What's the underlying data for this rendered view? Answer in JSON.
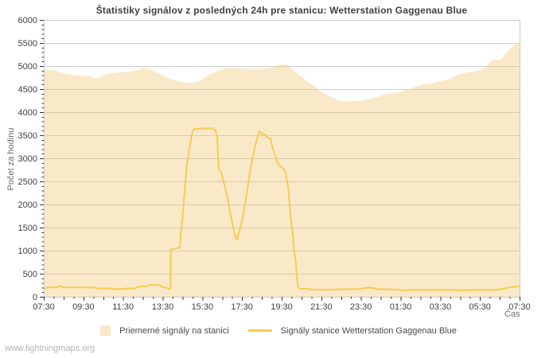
{
  "watermark": "www.lightningmaps.org",
  "chart": {
    "title": "Štatistiky signálov z posledných 24h pre stanicu: Wetterstation Gaggenau Blue",
    "ylabel": "Počet za hodinu",
    "xlabel": "Čas"
  },
  "legend": {
    "items": [
      {
        "label": "Priemerné signály na stanici",
        "type": "area",
        "swatch_color": "#fae7c4"
      },
      {
        "label": "Signály stanice Wetterstation Gaggenau Blue",
        "type": "line",
        "swatch_color": "#f7cc4f"
      }
    ]
  },
  "colors": {
    "area_fill": "rgba(243,197,114,0.38)",
    "line": "#f7cc4f",
    "gridline": "#cfcfcf",
    "frame": "#c9c9c9",
    "tick": "#333333",
    "tick_label": "#404040"
  },
  "chart_data": {
    "type": "area",
    "title": "Štatistiky signálov z posledných 24h pre stanicu: Wetterstation Gaggenau Blue",
    "xlabel": "Čas",
    "ylabel": "Počet za hodinu",
    "x_unit": "hours since 07:30",
    "xlim": [
      0,
      24
    ],
    "ylim": [
      0,
      6000
    ],
    "grid": true,
    "legend_position": "bottom-center",
    "x_tick_hours": [
      0,
      2,
      4,
      6,
      8,
      10,
      12,
      14,
      16,
      18,
      20,
      22,
      24
    ],
    "x_tick_labels": [
      "07:30",
      "09:30",
      "11:30",
      "13:30",
      "15:30",
      "17:30",
      "19:30",
      "21:30",
      "23:30",
      "01:30",
      "03:30",
      "05:30",
      "07:30"
    ],
    "x_minor_step_hours": 0.5,
    "y_tick_values": [
      0,
      500,
      1000,
      1500,
      2000,
      2500,
      3000,
      3500,
      4000,
      4500,
      5000,
      5500,
      6000
    ],
    "y_tick_labels": [
      "0",
      "500",
      "1000",
      "1500",
      "2000",
      "2500",
      "3000",
      "3500",
      "4000",
      "4500",
      "5000",
      "5500",
      "6000"
    ],
    "y_minor_step": 100,
    "series": [
      {
        "name": "Priemerné signály na stanici",
        "type": "area",
        "points": [
          [
            0,
            4930
          ],
          [
            0.6,
            4900
          ],
          [
            1.1,
            4830
          ],
          [
            1.6,
            4800
          ],
          [
            2.1,
            4790
          ],
          [
            2.4,
            4770
          ],
          [
            2.62,
            4720
          ],
          [
            2.82,
            4770
          ],
          [
            3.1,
            4820
          ],
          [
            3.5,
            4850
          ],
          [
            4.0,
            4870
          ],
          [
            4.5,
            4890
          ],
          [
            4.8,
            4925
          ],
          [
            5.1,
            4955
          ],
          [
            5.4,
            4930
          ],
          [
            5.65,
            4880
          ],
          [
            5.9,
            4820
          ],
          [
            6.2,
            4760
          ],
          [
            6.5,
            4700
          ],
          [
            6.9,
            4655
          ],
          [
            7.4,
            4635
          ],
          [
            7.9,
            4680
          ],
          [
            8.15,
            4770
          ],
          [
            8.67,
            4870
          ],
          [
            9.0,
            4930
          ],
          [
            9.5,
            4960
          ],
          [
            10.0,
            4945
          ],
          [
            10.9,
            4940
          ],
          [
            11.3,
            4950
          ],
          [
            11.6,
            4975
          ],
          [
            12.0,
            5040
          ],
          [
            12.3,
            5020
          ],
          [
            12.45,
            4960
          ],
          [
            12.6,
            4900
          ],
          [
            12.7,
            4860
          ],
          [
            12.85,
            4820
          ],
          [
            13.1,
            4740
          ],
          [
            13.25,
            4680
          ],
          [
            13.5,
            4610
          ],
          [
            13.8,
            4520
          ],
          [
            14.0,
            4440
          ],
          [
            14.3,
            4370
          ],
          [
            14.6,
            4310
          ],
          [
            14.85,
            4260
          ],
          [
            15.3,
            4230
          ],
          [
            16.0,
            4250
          ],
          [
            16.45,
            4280
          ],
          [
            16.75,
            4320
          ],
          [
            17.25,
            4390
          ],
          [
            17.8,
            4420
          ],
          [
            18.35,
            4490
          ],
          [
            18.9,
            4570
          ],
          [
            19.15,
            4610
          ],
          [
            19.55,
            4620
          ],
          [
            19.95,
            4670
          ],
          [
            20.3,
            4700
          ],
          [
            20.65,
            4750
          ],
          [
            20.85,
            4810
          ],
          [
            21.2,
            4845
          ],
          [
            21.5,
            4870
          ],
          [
            21.85,
            4890
          ],
          [
            22.1,
            4940
          ],
          [
            22.25,
            4970
          ],
          [
            22.4,
            5030
          ],
          [
            22.55,
            5090
          ],
          [
            22.65,
            5145
          ],
          [
            23.05,
            5130
          ],
          [
            23.2,
            5200
          ],
          [
            23.3,
            5260
          ],
          [
            23.45,
            5345
          ],
          [
            23.6,
            5400
          ],
          [
            23.7,
            5460
          ],
          [
            24,
            5500
          ]
        ]
      },
      {
        "name": "Signály stanice Wetterstation Gaggenau Blue",
        "type": "line",
        "points": [
          [
            0,
            175
          ],
          [
            0.2,
            205
          ],
          [
            0.7,
            205
          ],
          [
            0.8,
            235
          ],
          [
            0.95,
            205
          ],
          [
            2.55,
            200
          ],
          [
            2.7,
            180
          ],
          [
            3.35,
            180
          ],
          [
            3.45,
            165
          ],
          [
            3.95,
            165
          ],
          [
            4.1,
            180
          ],
          [
            4.6,
            180
          ],
          [
            4.75,
            220
          ],
          [
            5.2,
            225
          ],
          [
            5.35,
            255
          ],
          [
            5.8,
            255
          ],
          [
            5.95,
            215
          ],
          [
            6.2,
            195
          ],
          [
            6.3,
            175
          ],
          [
            6.38,
            175
          ],
          [
            6.41,
            1030
          ],
          [
            6.85,
            1060
          ],
          [
            7.05,
            2000
          ],
          [
            7.2,
            2800
          ],
          [
            7.38,
            3300
          ],
          [
            7.5,
            3580
          ],
          [
            7.6,
            3640
          ],
          [
            8.55,
            3650
          ],
          [
            8.67,
            3600
          ],
          [
            8.75,
            3440
          ],
          [
            8.82,
            2760
          ],
          [
            8.95,
            2700
          ],
          [
            9.07,
            2490
          ],
          [
            9.27,
            2160
          ],
          [
            9.4,
            1820
          ],
          [
            9.55,
            1500
          ],
          [
            9.65,
            1310
          ],
          [
            9.75,
            1230
          ],
          [
            9.88,
            1450
          ],
          [
            10.0,
            1650
          ],
          [
            10.15,
            2000
          ],
          [
            10.28,
            2350
          ],
          [
            10.4,
            2700
          ],
          [
            10.55,
            3050
          ],
          [
            10.68,
            3300
          ],
          [
            10.8,
            3500
          ],
          [
            10.89,
            3590
          ],
          [
            11.0,
            3520
          ],
          [
            11.17,
            3520
          ],
          [
            11.3,
            3440
          ],
          [
            11.45,
            3430
          ],
          [
            11.5,
            3300
          ],
          [
            11.62,
            3130
          ],
          [
            11.75,
            2950
          ],
          [
            11.9,
            2840
          ],
          [
            12.05,
            2790
          ],
          [
            12.17,
            2730
          ],
          [
            12.3,
            2450
          ],
          [
            12.37,
            2160
          ],
          [
            12.43,
            1820
          ],
          [
            12.5,
            1540
          ],
          [
            12.57,
            1310
          ],
          [
            12.63,
            970
          ],
          [
            12.7,
            800
          ],
          [
            12.75,
            515
          ],
          [
            12.79,
            320
          ],
          [
            12.84,
            200
          ],
          [
            12.95,
            175
          ],
          [
            13.3,
            170
          ],
          [
            13.6,
            155
          ],
          [
            14.2,
            150
          ],
          [
            14.9,
            160
          ],
          [
            15.8,
            165
          ],
          [
            16.35,
            195
          ],
          [
            16.6,
            195
          ],
          [
            16.8,
            165
          ],
          [
            17.5,
            160
          ],
          [
            18.2,
            140
          ],
          [
            18.8,
            150
          ],
          [
            19.6,
            145
          ],
          [
            20.4,
            150
          ],
          [
            21.1,
            140
          ],
          [
            21.9,
            150
          ],
          [
            22.6,
            145
          ],
          [
            23.2,
            170
          ],
          [
            23.6,
            210
          ],
          [
            24,
            230
          ]
        ]
      }
    ]
  }
}
